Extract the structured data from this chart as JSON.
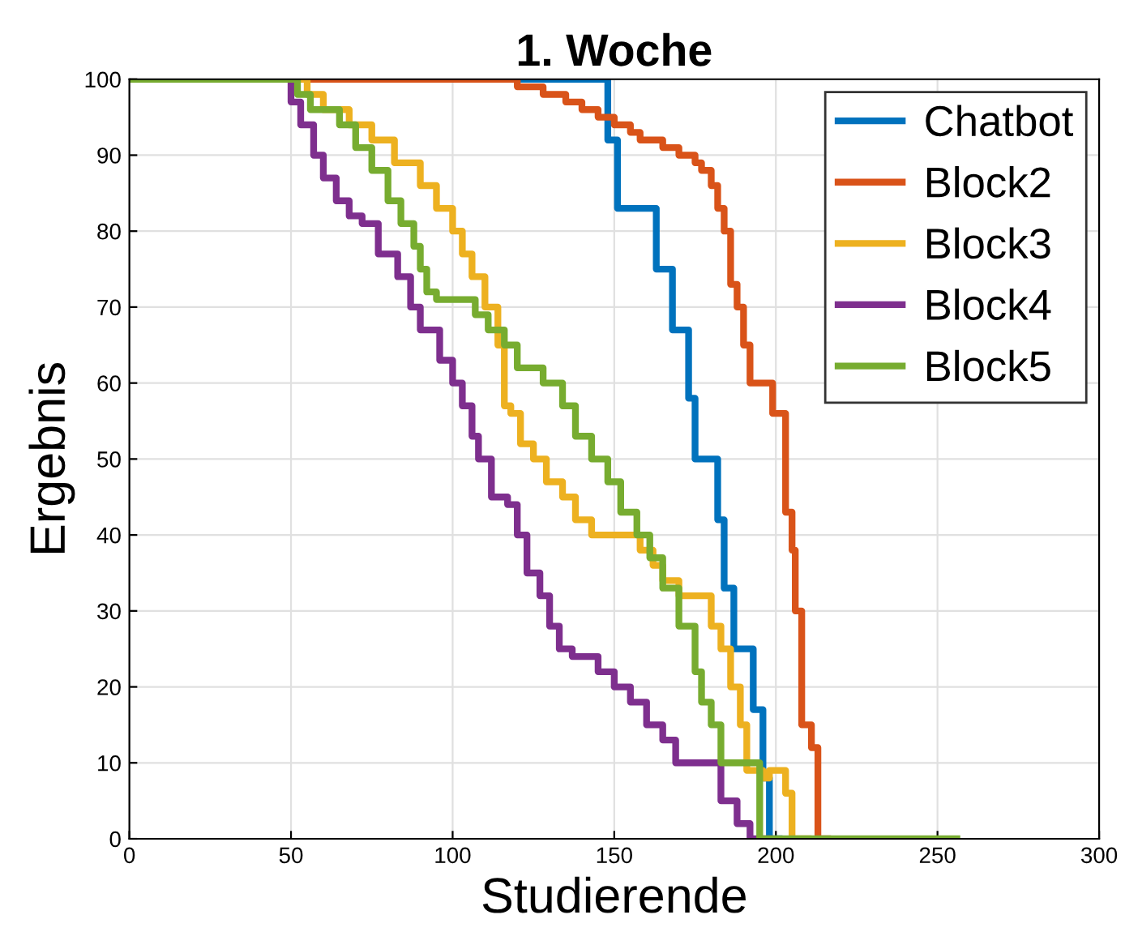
{
  "chart_data": {
    "type": "step",
    "title": "1. Woche",
    "xlabel": "Studierende",
    "ylabel": "Ergebnis",
    "xlim": [
      0,
      300
    ],
    "ylim": [
      0,
      100
    ],
    "xticks": [
      0,
      50,
      100,
      150,
      200,
      250,
      300
    ],
    "yticks": [
      0,
      10,
      20,
      30,
      40,
      50,
      60,
      70,
      80,
      90,
      100
    ],
    "grid": true,
    "legend": "top right",
    "line_style": "solid",
    "series": [
      {
        "name": "Chatbot",
        "color": "#0072bd",
        "x": [
          0,
          148,
          151,
          163,
          168,
          173,
          175,
          182,
          184,
          187,
          193,
          196,
          198,
          201
        ],
        "values": [
          100,
          92,
          83,
          75,
          67,
          58,
          50,
          42,
          33,
          25,
          17,
          8,
          0,
          0
        ]
      },
      {
        "name": "Block2",
        "color": "#d95319",
        "x": [
          0,
          120,
          128,
          135,
          140,
          145,
          150,
          155,
          158,
          165,
          170,
          175,
          177,
          180,
          182,
          184,
          186,
          188,
          190,
          192,
          199,
          203,
          205,
          206,
          208,
          211,
          213,
          216
        ],
        "values": [
          100,
          99,
          98,
          97,
          96,
          95,
          94,
          93,
          92,
          91,
          90,
          89,
          88,
          86,
          83,
          80,
          73,
          70,
          65,
          60,
          56,
          43,
          38,
          30,
          15,
          12,
          0,
          0
        ]
      },
      {
        "name": "Block3",
        "color": "#edb120",
        "x": [
          0,
          55,
          60,
          68,
          75,
          82,
          90,
          95,
          100,
          103,
          106,
          110,
          114,
          116,
          118,
          121,
          125,
          129,
          134,
          138,
          143,
          158,
          162,
          165,
          170,
          180,
          183,
          186,
          189,
          191,
          196,
          198,
          203,
          205,
          209,
          210
        ],
        "values": [
          100,
          98,
          96,
          94,
          92,
          89,
          86,
          83,
          80,
          77,
          74,
          70,
          65,
          57,
          56,
          52,
          50,
          47,
          45,
          42,
          40,
          38,
          36,
          34,
          32,
          28,
          25,
          20,
          15,
          9,
          8,
          9,
          6,
          0,
          0,
          0
        ]
      },
      {
        "name": "Block4",
        "color": "#7e2f8e",
        "x": [
          0,
          50,
          53,
          57,
          60,
          64,
          68,
          72,
          77,
          83,
          87,
          90,
          96,
          100,
          103,
          106,
          108,
          112,
          117,
          120,
          123,
          127,
          130,
          133,
          137,
          145,
          150,
          155,
          160,
          165,
          169,
          183,
          188,
          192,
          196,
          198
        ],
        "values": [
          100,
          97,
          94,
          90,
          87,
          84,
          82,
          81,
          77,
          74,
          70,
          67,
          63,
          60,
          57,
          53,
          50,
          45,
          44,
          40,
          35,
          32,
          28,
          25,
          24,
          22,
          20,
          18,
          15,
          13,
          10,
          5,
          2,
          0,
          0,
          0
        ]
      },
      {
        "name": "Block5",
        "color": "#77ac30",
        "x": [
          0,
          52,
          56,
          65,
          70,
          75,
          80,
          84,
          88,
          90,
          92,
          95,
          107,
          111,
          116,
          120,
          128,
          134,
          138,
          143,
          148,
          152,
          157,
          161,
          165,
          170,
          175,
          177,
          180,
          183,
          195,
          201,
          256
        ],
        "values": [
          100,
          98,
          96,
          94,
          91,
          88,
          84,
          81,
          78,
          75,
          72,
          71,
          69,
          67,
          65,
          62,
          60,
          57,
          53,
          50,
          47,
          43,
          40,
          37,
          33,
          28,
          22,
          18,
          15,
          10,
          0,
          0,
          0
        ]
      }
    ]
  }
}
